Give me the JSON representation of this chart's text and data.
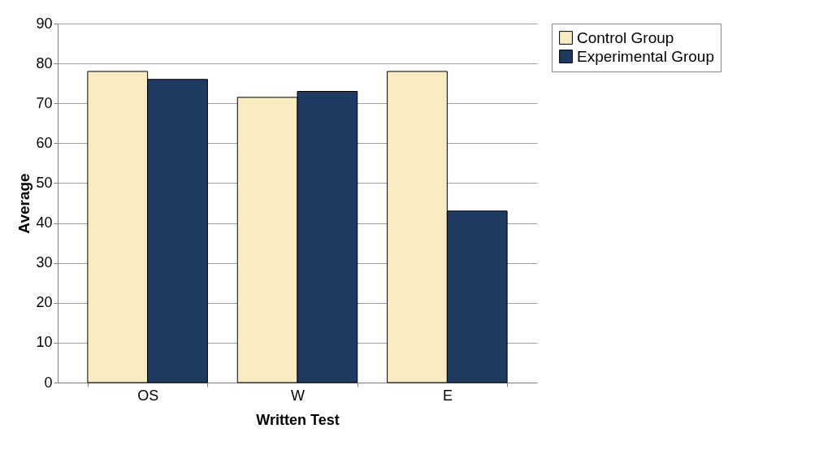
{
  "chart_data": {
    "type": "bar",
    "xlabel": "Written  Test",
    "ylabel": "Average",
    "categories": [
      "OS",
      "W",
      "E"
    ],
    "series": [
      {
        "name": "Control Group",
        "color": "#f8ecc0",
        "values": [
          78,
          71.5,
          78
        ]
      },
      {
        "name": "Experimental Group",
        "color": "#1f3a60",
        "values": [
          76,
          73,
          43
        ]
      }
    ],
    "ylim": [
      0,
      90
    ],
    "yticks": [
      0,
      10,
      20,
      30,
      40,
      50,
      60,
      70,
      80,
      90
    ],
    "grid": "y",
    "legend": "right"
  }
}
